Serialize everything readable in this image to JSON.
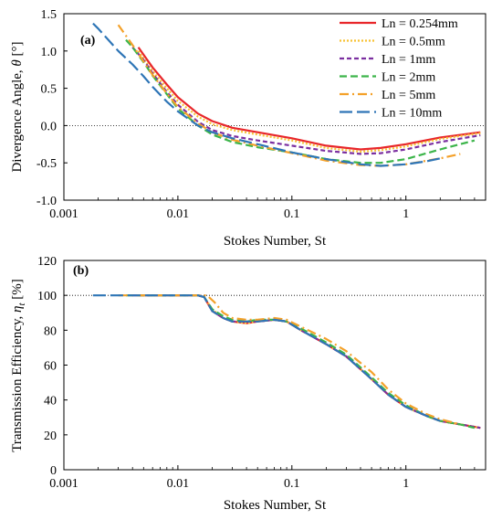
{
  "series_styles": [
    {
      "name": "Ln = 0.254mm",
      "color": "#e8262a",
      "dash": ""
    },
    {
      "name": "Ln = 0.5mm",
      "color": "#f7c233",
      "dash": "2,2"
    },
    {
      "name": "Ln = 1mm",
      "color": "#7b2fa0",
      "dash": "5,3"
    },
    {
      "name": "Ln = 2mm",
      "color": "#3cb54a",
      "dash": "8,4"
    },
    {
      "name": "Ln = 5mm",
      "color": "#f4a12a",
      "dash": "10,4,2,4"
    },
    {
      "name": "Ln = 10mm",
      "color": "#2e75b6",
      "dash": "14,5"
    }
  ],
  "chart_data": [
    {
      "type": "line",
      "panel_label": "(a)",
      "xlabel": "Stokes Number, St",
      "ylabel": "Divergence Angle, θ [°]",
      "xscale": "log",
      "xlim": [
        0.001,
        5
      ],
      "ylim": [
        -1.0,
        1.5
      ],
      "xticks": [
        "0.001",
        "0.01",
        "0.1",
        "1"
      ],
      "yticks": [
        "-1.0",
        "-0.5",
        "0.0",
        "0.5",
        "1.0",
        "1.5"
      ],
      "reference_line": 0.0,
      "legend": "top-right",
      "series": [
        {
          "name": "Ln = 0.254mm",
          "x": [
            0.0045,
            0.005,
            0.006,
            0.008,
            0.01,
            0.015,
            0.02,
            0.03,
            0.05,
            0.1,
            0.2,
            0.4,
            0.6,
            1.0,
            2.0,
            4.5
          ],
          "y": [
            1.05,
            0.95,
            0.78,
            0.55,
            0.38,
            0.16,
            0.06,
            -0.03,
            -0.09,
            -0.17,
            -0.27,
            -0.32,
            -0.3,
            -0.25,
            -0.16,
            -0.09
          ]
        },
        {
          "name": "Ln = 0.5mm",
          "x": [
            0.0045,
            0.005,
            0.006,
            0.008,
            0.01,
            0.015,
            0.02,
            0.03,
            0.05,
            0.1,
            0.2,
            0.4,
            0.6,
            1.0,
            2.0,
            4.5
          ],
          "y": [
            1.0,
            0.9,
            0.73,
            0.5,
            0.33,
            0.12,
            0.02,
            -0.06,
            -0.12,
            -0.2,
            -0.3,
            -0.35,
            -0.33,
            -0.28,
            -0.18,
            -0.1
          ]
        },
        {
          "name": "Ln = 1mm",
          "x": [
            0.004,
            0.005,
            0.006,
            0.008,
            0.01,
            0.015,
            0.02,
            0.03,
            0.05,
            0.1,
            0.2,
            0.4,
            0.6,
            1.0,
            2.0,
            4.5
          ],
          "y": [
            1.05,
            0.88,
            0.7,
            0.45,
            0.28,
            0.05,
            -0.06,
            -0.14,
            -0.2,
            -0.27,
            -0.34,
            -0.38,
            -0.37,
            -0.32,
            -0.22,
            -0.13
          ]
        },
        {
          "name": "Ln = 2mm",
          "x": [
            0.0035,
            0.004,
            0.005,
            0.006,
            0.008,
            0.01,
            0.015,
            0.02,
            0.03,
            0.05,
            0.1,
            0.2,
            0.4,
            0.6,
            1.0,
            2.0,
            4.0
          ],
          "y": [
            1.15,
            1.05,
            0.85,
            0.67,
            0.42,
            0.23,
            0.0,
            -0.12,
            -0.22,
            -0.29,
            -0.36,
            -0.45,
            -0.5,
            -0.5,
            -0.45,
            -0.32,
            -0.2
          ]
        },
        {
          "name": "Ln = 5mm",
          "x": [
            0.003,
            0.004,
            0.005,
            0.006,
            0.008,
            0.01,
            0.015,
            0.02,
            0.03,
            0.05,
            0.1,
            0.2,
            0.4,
            0.6,
            1.0,
            2.0,
            3.0
          ],
          "y": [
            1.35,
            1.08,
            0.86,
            0.68,
            0.43,
            0.25,
            0.03,
            -0.09,
            -0.19,
            -0.27,
            -0.37,
            -0.47,
            -0.53,
            -0.54,
            -0.52,
            -0.44,
            -0.38
          ]
        },
        {
          "name": "Ln = 10mm",
          "x": [
            0.0018,
            0.002,
            0.003,
            0.004,
            0.005,
            0.006,
            0.008,
            0.01,
            0.015,
            0.02,
            0.03,
            0.05,
            0.1,
            0.2,
            0.4,
            0.6,
            1.0,
            1.5,
            2.0
          ],
          "y": [
            1.37,
            1.3,
            1.0,
            0.82,
            0.66,
            0.52,
            0.32,
            0.19,
            0.0,
            -0.09,
            -0.17,
            -0.25,
            -0.36,
            -0.45,
            -0.52,
            -0.54,
            -0.52,
            -0.48,
            -0.44
          ]
        }
      ]
    },
    {
      "type": "line",
      "panel_label": "(b)",
      "xlabel": "Stokes Number, St",
      "ylabel": "Transmission Efficiency, η_t [%]",
      "xscale": "log",
      "xlim": [
        0.001,
        5
      ],
      "ylim": [
        0,
        120
      ],
      "xticks": [
        "0.001",
        "0.01",
        "0.1",
        "1"
      ],
      "yticks": [
        "0",
        "20",
        "40",
        "60",
        "80",
        "100",
        "120"
      ],
      "reference_line": 100,
      "legend": "none",
      "series": [
        {
          "name": "Ln = 0.254mm",
          "x": [
            0.0045,
            0.01,
            0.015,
            0.017,
            0.02,
            0.025,
            0.03,
            0.04,
            0.05,
            0.07,
            0.09,
            0.12,
            0.2,
            0.3,
            0.5,
            0.7,
            1.0,
            1.5,
            2.0,
            3.0,
            4.5
          ],
          "y": [
            100,
            100,
            100,
            99,
            91,
            87,
            85,
            84,
            85,
            86,
            85,
            80,
            72,
            65,
            52,
            43,
            36,
            31,
            28,
            26,
            24
          ]
        },
        {
          "name": "Ln = 0.5mm",
          "x": [
            0.0045,
            0.01,
            0.015,
            0.017,
            0.02,
            0.025,
            0.03,
            0.04,
            0.05,
            0.07,
            0.09,
            0.12,
            0.2,
            0.3,
            0.5,
            0.7,
            1.0,
            1.5,
            2.0,
            3.0,
            4.5
          ],
          "y": [
            100,
            100,
            100,
            99,
            92,
            87,
            85,
            84,
            85,
            86,
            85,
            80,
            72,
            65,
            52,
            43,
            36,
            31,
            28,
            26,
            24
          ]
        },
        {
          "name": "Ln = 1mm",
          "x": [
            0.004,
            0.01,
            0.015,
            0.017,
            0.02,
            0.025,
            0.03,
            0.04,
            0.05,
            0.07,
            0.09,
            0.12,
            0.2,
            0.3,
            0.5,
            0.7,
            1.0,
            1.5,
            2.0,
            3.0,
            4.5
          ],
          "y": [
            100,
            100,
            100,
            99,
            91,
            87,
            85,
            85,
            85,
            86,
            85,
            80,
            72,
            65,
            52,
            43,
            36,
            31,
            28,
            26,
            24
          ]
        },
        {
          "name": "Ln = 2mm",
          "x": [
            0.0035,
            0.01,
            0.015,
            0.017,
            0.02,
            0.025,
            0.03,
            0.04,
            0.05,
            0.07,
            0.09,
            0.12,
            0.2,
            0.3,
            0.5,
            0.7,
            1.0,
            1.5,
            2.0,
            3.0,
            4.0
          ],
          "y": [
            100,
            100,
            100,
            99,
            92,
            88,
            86,
            85,
            86,
            86,
            85,
            81,
            73,
            66,
            53,
            44,
            37,
            31,
            28,
            26,
            24
          ]
        },
        {
          "name": "Ln = 5mm",
          "x": [
            0.003,
            0.01,
            0.015,
            0.018,
            0.021,
            0.025,
            0.03,
            0.04,
            0.05,
            0.07,
            0.09,
            0.12,
            0.2,
            0.3,
            0.5,
            0.7,
            1.0,
            1.5,
            2.0,
            3.0
          ],
          "y": [
            100,
            100,
            100,
            100,
            96,
            90,
            87,
            86,
            86,
            87,
            86,
            82,
            75,
            68,
            56,
            46,
            38,
            32,
            29,
            26
          ]
        },
        {
          "name": "Ln = 10mm",
          "x": [
            0.0018,
            0.01,
            0.015,
            0.017,
            0.02,
            0.025,
            0.03,
            0.04,
            0.05,
            0.07,
            0.09,
            0.12,
            0.2,
            0.3,
            0.5,
            0.7,
            1.0,
            1.5,
            2.0
          ],
          "y": [
            100,
            100,
            100,
            99,
            91,
            87,
            85,
            85,
            85,
            86,
            85,
            80,
            72,
            65,
            52,
            43,
            36,
            31,
            28
          ]
        }
      ]
    }
  ]
}
